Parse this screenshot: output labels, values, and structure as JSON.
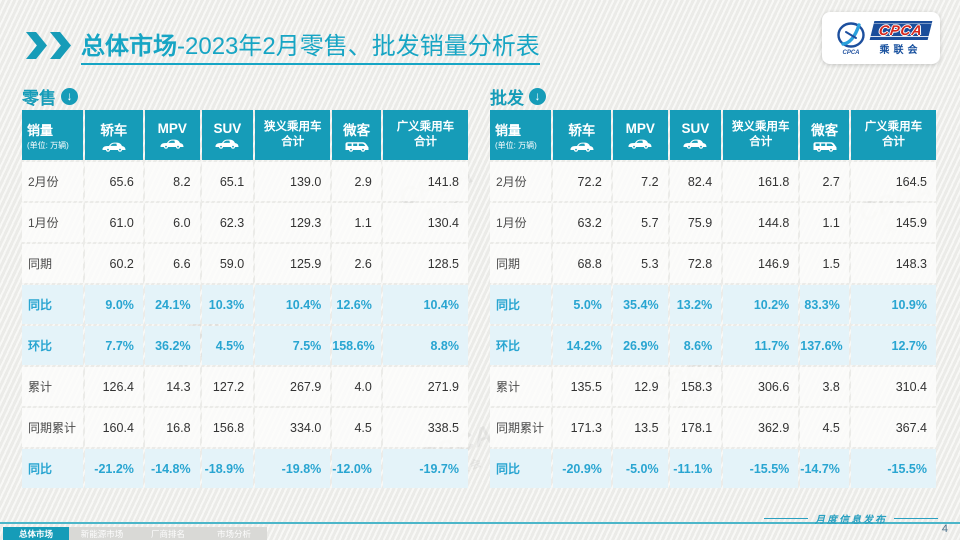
{
  "header": {
    "title_bold": "总体市场",
    "title_rest": "-2023年2月零售、批发销量分析表"
  },
  "logo": {
    "acronym": "CPCA",
    "name_cn": "乘联会",
    "emblem_text": "CPCA"
  },
  "columns": {
    "first_title": "销量",
    "first_sub": "(单位: 万辆)",
    "cols": [
      {
        "label": "轿车"
      },
      {
        "label": "MPV"
      },
      {
        "label": "SUV"
      },
      {
        "label": "狭义乘用车",
        "label2": "合计"
      },
      {
        "label": "微客"
      },
      {
        "label": "广义乘用车",
        "label2": "合计"
      }
    ]
  },
  "retail": {
    "section_label": "零售",
    "rows": [
      {
        "label": "2月份",
        "values": [
          "65.6",
          "8.2",
          "65.1",
          "139.0",
          "2.9",
          "141.8"
        ]
      },
      {
        "label": "1月份",
        "values": [
          "61.0",
          "6.0",
          "62.3",
          "129.3",
          "1.1",
          "130.4"
        ]
      },
      {
        "label": "同期",
        "values": [
          "60.2",
          "6.6",
          "59.0",
          "125.9",
          "2.6",
          "128.5"
        ]
      },
      {
        "label": "同比",
        "values": [
          "9.0%",
          "24.1%",
          "10.3%",
          "10.4%",
          "12.6%",
          "10.4%"
        ],
        "highlight": true
      },
      {
        "label": "环比",
        "values": [
          "7.7%",
          "36.2%",
          "4.5%",
          "7.5%",
          "158.6%",
          "8.8%"
        ],
        "highlight": true
      },
      {
        "label": "累计",
        "values": [
          "126.4",
          "14.3",
          "127.2",
          "267.9",
          "4.0",
          "271.9"
        ]
      },
      {
        "label": "同期累计",
        "values": [
          "160.4",
          "16.8",
          "156.8",
          "334.0",
          "4.5",
          "338.5"
        ]
      },
      {
        "label": "同比",
        "values": [
          "-21.2%",
          "-14.8%",
          "-18.9%",
          "-19.8%",
          "-12.0%",
          "-19.7%"
        ],
        "highlight": true
      }
    ]
  },
  "wholesale": {
    "section_label": "批发",
    "rows": [
      {
        "label": "2月份",
        "values": [
          "72.2",
          "7.2",
          "82.4",
          "161.8",
          "2.7",
          "164.5"
        ]
      },
      {
        "label": "1月份",
        "values": [
          "63.2",
          "5.7",
          "75.9",
          "144.8",
          "1.1",
          "145.9"
        ]
      },
      {
        "label": "同期",
        "values": [
          "68.8",
          "5.3",
          "72.8",
          "146.9",
          "1.5",
          "148.3"
        ]
      },
      {
        "label": "同比",
        "values": [
          "5.0%",
          "35.4%",
          "13.2%",
          "10.2%",
          "83.3%",
          "10.9%"
        ],
        "highlight": true
      },
      {
        "label": "环比",
        "values": [
          "14.2%",
          "26.9%",
          "8.6%",
          "11.7%",
          "137.6%",
          "12.7%"
        ],
        "highlight": true
      },
      {
        "label": "累计",
        "values": [
          "135.5",
          "12.9",
          "158.3",
          "306.6",
          "3.8",
          "310.4"
        ]
      },
      {
        "label": "同期累计",
        "values": [
          "171.3",
          "13.5",
          "178.1",
          "362.9",
          "4.5",
          "367.4"
        ]
      },
      {
        "label": "同比",
        "values": [
          "-20.9%",
          "-5.0%",
          "-11.1%",
          "-15.5%",
          "-14.7%",
          "-15.5%"
        ],
        "highlight": true
      }
    ]
  },
  "footer": {
    "tabs": [
      {
        "label": "总体市场",
        "active": true
      },
      {
        "label": "新能源市场",
        "active": false
      },
      {
        "label": "厂商排名",
        "active": false
      },
      {
        "label": "市场分析",
        "active": false
      }
    ],
    "release_label": "月度信息发布",
    "page_number": "4"
  },
  "watermark": {
    "big": "CPCA",
    "small": "乘联会"
  },
  "icons": {
    "download": "↓"
  },
  "colors": {
    "teal": "#169cb8",
    "title_teal": "#17a5c4",
    "highlight_bg": "#e4f3f9",
    "highlight_text": "#29a5d1",
    "logo_blue": "#1b4e9b",
    "logo_red": "#d5281e"
  }
}
